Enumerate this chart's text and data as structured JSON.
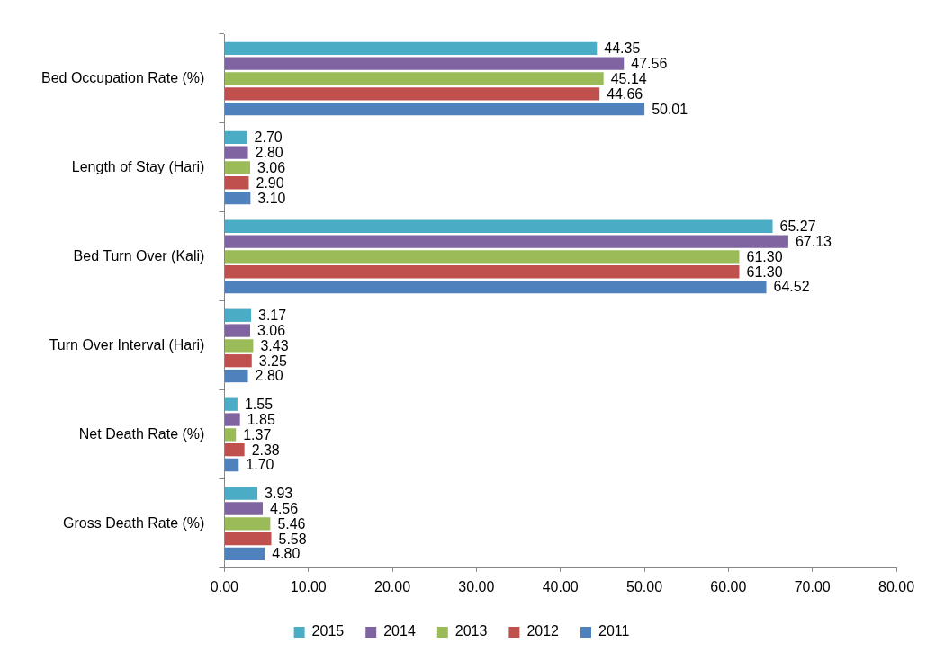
{
  "chart_data": {
    "type": "bar",
    "orientation": "horizontal",
    "categories": [
      "Bed Occupation Rate (%)",
      "Length of Stay (Hari)",
      "Bed Turn Over (Kali)",
      "Turn Over Interval (Hari)",
      "Net Death Rate (%)",
      "Gross Death Rate (%)"
    ],
    "series": [
      {
        "name": "2015",
        "color": "#4bacc6",
        "values": [
          44.35,
          2.7,
          65.27,
          3.17,
          1.55,
          3.93
        ],
        "value_labels": [
          "44.35",
          "2.70",
          "65.27",
          "3.17",
          "1.55",
          "3.93"
        ]
      },
      {
        "name": "2014",
        "color": "#8064a2",
        "values": [
          47.56,
          2.8,
          67.13,
          3.06,
          1.85,
          4.56
        ],
        "value_labels": [
          "47.56",
          "2.80",
          "67.13",
          "3.06",
          "1.85",
          "4.56"
        ]
      },
      {
        "name": "2013",
        "color": "#9bbb59",
        "values": [
          45.14,
          3.06,
          61.3,
          3.43,
          1.37,
          5.46
        ],
        "value_labels": [
          "45.14",
          "3.06",
          "61.30",
          "3.43",
          "1.37",
          "5.46"
        ]
      },
      {
        "name": "2012",
        "color": "#c0504d",
        "values": [
          44.66,
          2.9,
          61.3,
          3.25,
          2.38,
          5.58
        ],
        "value_labels": [
          "44.66",
          "2.90",
          "61.30",
          "3.25",
          "2.38",
          "5.58"
        ]
      },
      {
        "name": "2011",
        "color": "#4f81bd",
        "values": [
          50.01,
          3.1,
          64.52,
          2.8,
          1.7,
          4.8
        ],
        "value_labels": [
          "50.01",
          "3.10",
          "64.52",
          "2.80",
          "1.70",
          "4.80"
        ]
      }
    ],
    "xlim": [
      0,
      80
    ],
    "xticks": [
      {
        "value": 0,
        "label": "0.00"
      },
      {
        "value": 10,
        "label": "10.00"
      },
      {
        "value": 20,
        "label": "20.00"
      },
      {
        "value": 30,
        "label": "30.00"
      },
      {
        "value": 40,
        "label": "40.00"
      },
      {
        "value": 50,
        "label": "50.00"
      },
      {
        "value": 60,
        "label": "60.00"
      },
      {
        "value": 70,
        "label": "70.00"
      },
      {
        "value": 80,
        "label": "80.00"
      }
    ],
    "grid": false,
    "legend": "bottom"
  }
}
